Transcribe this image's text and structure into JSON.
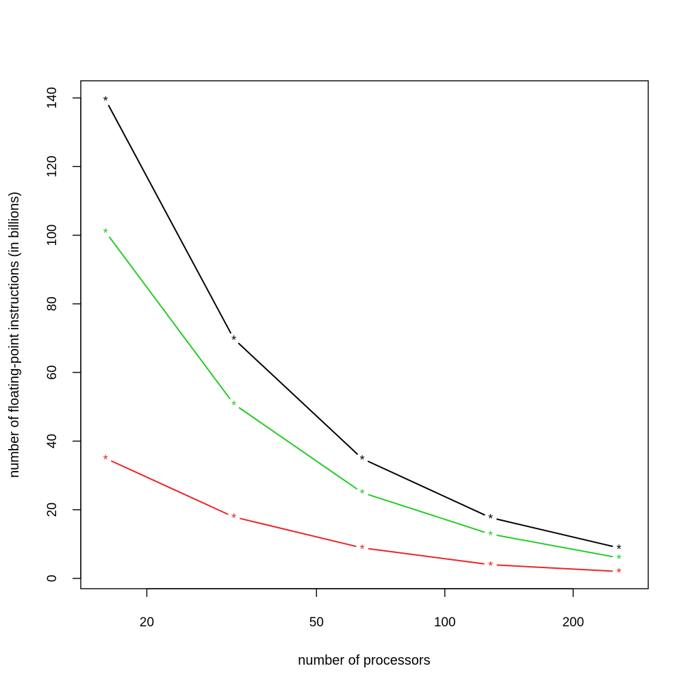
{
  "chart_data": {
    "type": "line",
    "title": "",
    "xlabel": "number of processors",
    "ylabel": "number of floating-point instructions (in billions)",
    "x_scale": "log",
    "x": [
      16,
      32,
      64,
      128,
      256
    ],
    "xlim": [
      14,
      300
    ],
    "ylim": [
      -3,
      145
    ],
    "xticks": [
      20,
      50,
      100,
      200
    ],
    "xtick_labels": [
      "20",
      "50",
      "100",
      "200"
    ],
    "yticks": [
      0,
      20,
      40,
      60,
      80,
      100,
      120,
      140
    ],
    "ytick_labels": [
      "0",
      "20",
      "40",
      "60",
      "80",
      "100",
      "120",
      "140"
    ],
    "marker_symbol": "*",
    "grid": false,
    "legend": false,
    "series": [
      {
        "color": "#000000",
        "values": [
          139.5,
          69.8,
          34.9,
          17.7,
          8.9
        ]
      },
      {
        "color": "#22cc22",
        "values": [
          101.0,
          50.8,
          25.0,
          12.9,
          6.0
        ]
      },
      {
        "color": "#ee2222",
        "values": [
          35.0,
          17.9,
          8.9,
          4.0,
          2.0
        ]
      }
    ]
  }
}
